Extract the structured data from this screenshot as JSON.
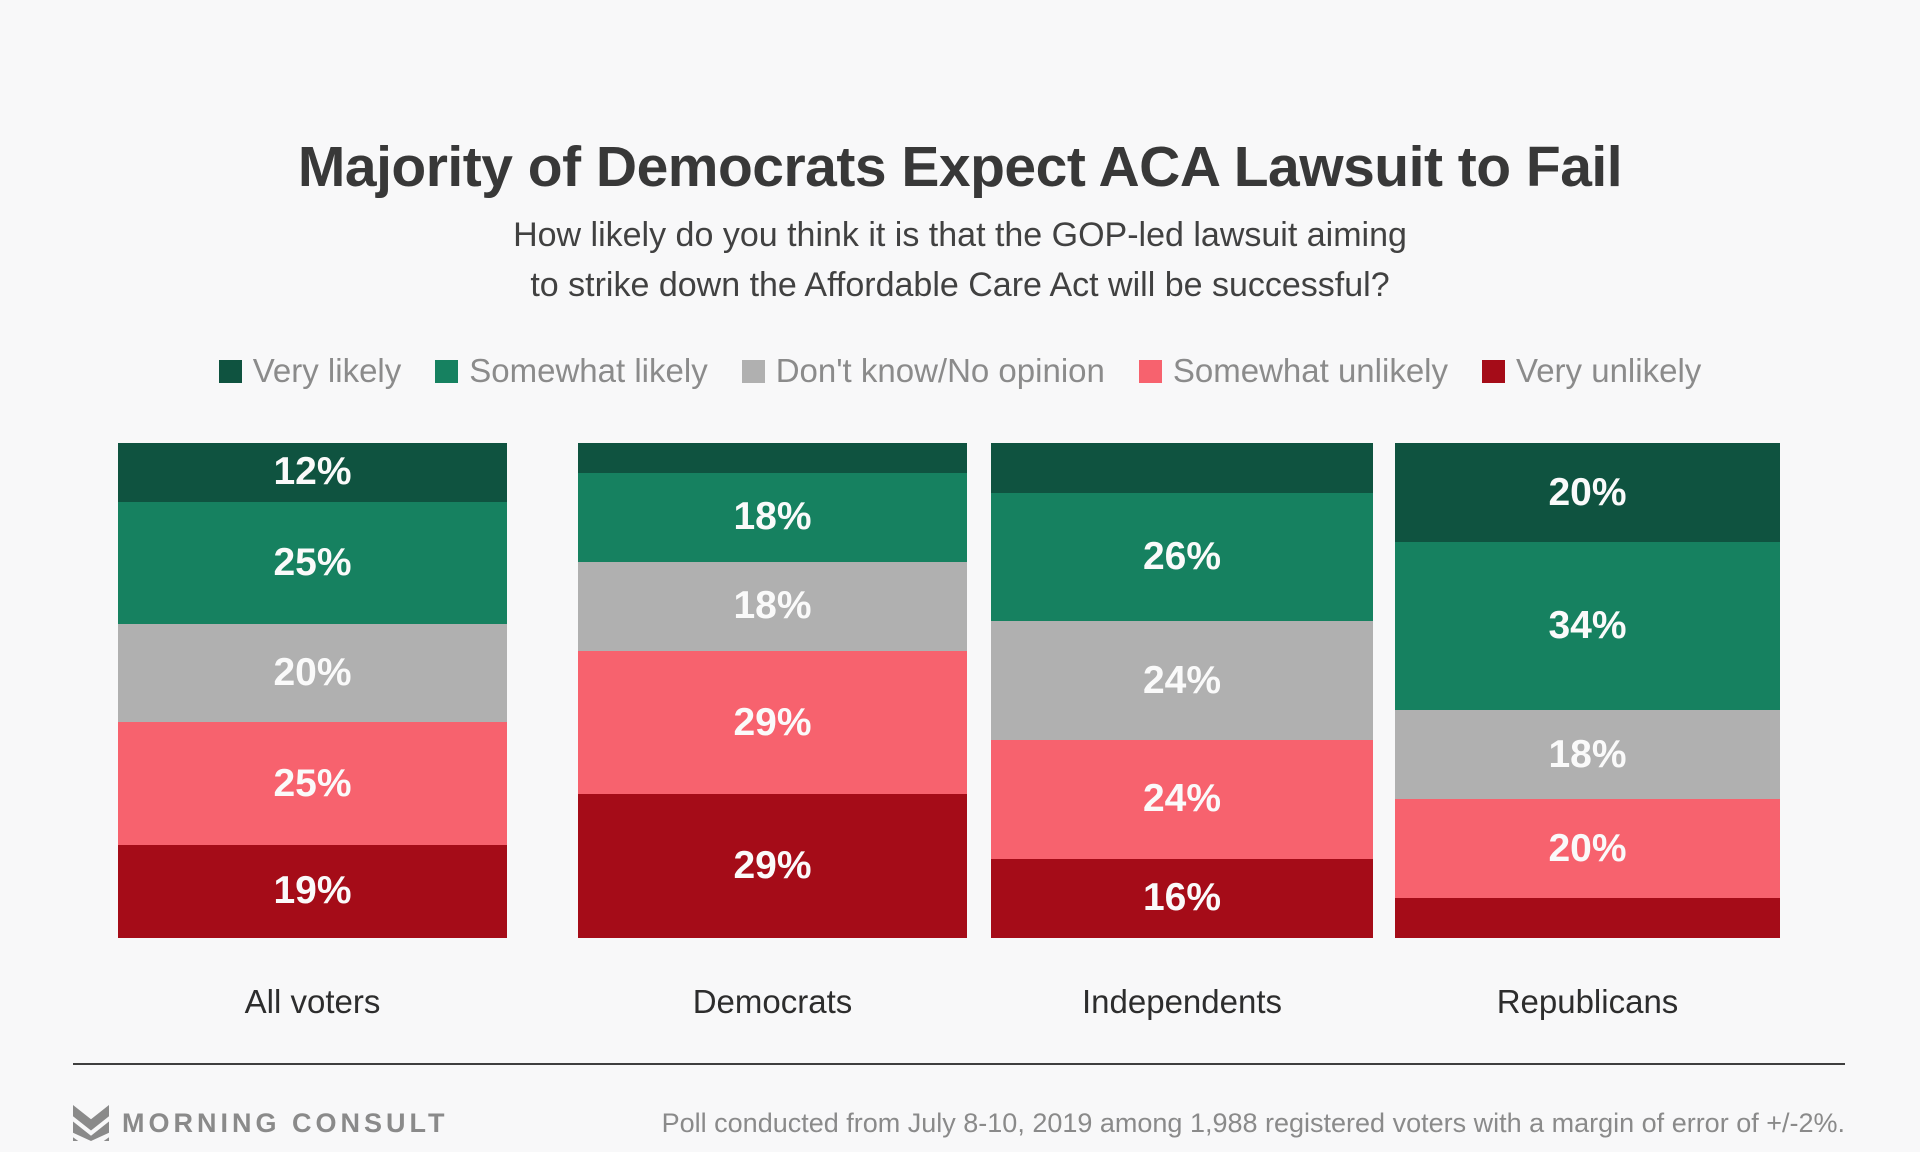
{
  "chart": {
    "title": "Majority of Democrats Expect ACA Lawsuit to Fail",
    "subtitle_line1": "How likely do you think it is that the GOP-led lawsuit aiming",
    "subtitle_line2": "to strike down the Affordable Care Act will be successful?"
  },
  "chart_data": {
    "type": "bar",
    "stacked": true,
    "orientation": "vertical",
    "grid": false,
    "legend_position": "top",
    "ylim": [
      0,
      100
    ],
    "categories": [
      "All voters",
      "Democrats",
      "Independents",
      "Republicans"
    ],
    "series": [
      {
        "name": "Very likely",
        "color": "#0f5340",
        "values": [
          12,
          6,
          10,
          20
        ],
        "value_labels": [
          "12%",
          "",
          "",
          "20%"
        ]
      },
      {
        "name": "Somewhat likely",
        "color": "#168160",
        "values": [
          25,
          18,
          26,
          34
        ],
        "value_labels": [
          "25%",
          "18%",
          "26%",
          "34%"
        ]
      },
      {
        "name": "Don't know/No opinion",
        "color": "#b0b0b0",
        "values": [
          20,
          18,
          24,
          18
        ],
        "value_labels": [
          "20%",
          "18%",
          "24%",
          "18%"
        ]
      },
      {
        "name": "Somewhat unlikely",
        "color": "#f7626e",
        "values": [
          25,
          29,
          24,
          20
        ],
        "value_labels": [
          "25%",
          "29%",
          "24%",
          "20%"
        ]
      },
      {
        "name": "Very unlikely",
        "color": "#a50c18",
        "values": [
          19,
          29,
          16,
          8
        ],
        "value_labels": [
          "19%",
          "29%",
          "16%",
          ""
        ]
      }
    ]
  },
  "footer": {
    "brand": "MORNING CONSULT",
    "note": "Poll conducted from July 8-10, 2019 among 1,988 registered voters with a margin of error of +/-2%."
  }
}
